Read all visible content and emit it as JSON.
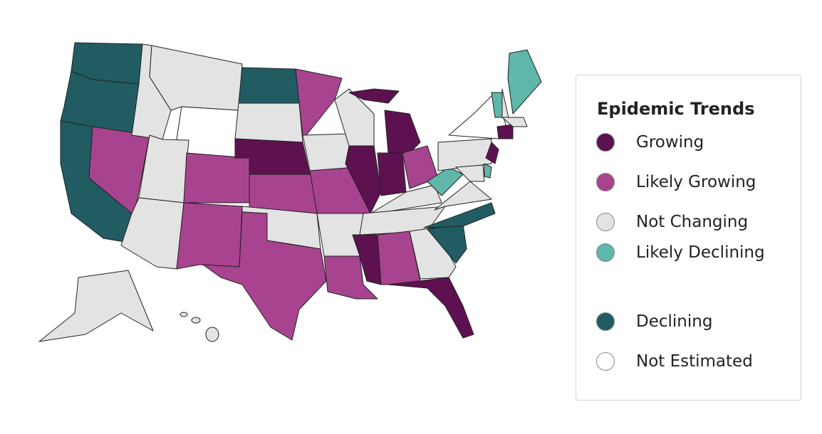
{
  "legend": {
    "title": "Epidemic Trends",
    "items": [
      {
        "label": "Growing",
        "color": "#5e1150"
      },
      {
        "label": "Likely Growing",
        "color": "#a8438f"
      },
      {
        "label": "Not Changing",
        "color": "#e3e3e3"
      },
      {
        "label": "Likely Declining",
        "color": "#5fb6aa"
      },
      {
        "label": "Declining",
        "color": "#225c63"
      },
      {
        "label": "Not Estimated",
        "color": "#ffffff"
      }
    ]
  }
}
